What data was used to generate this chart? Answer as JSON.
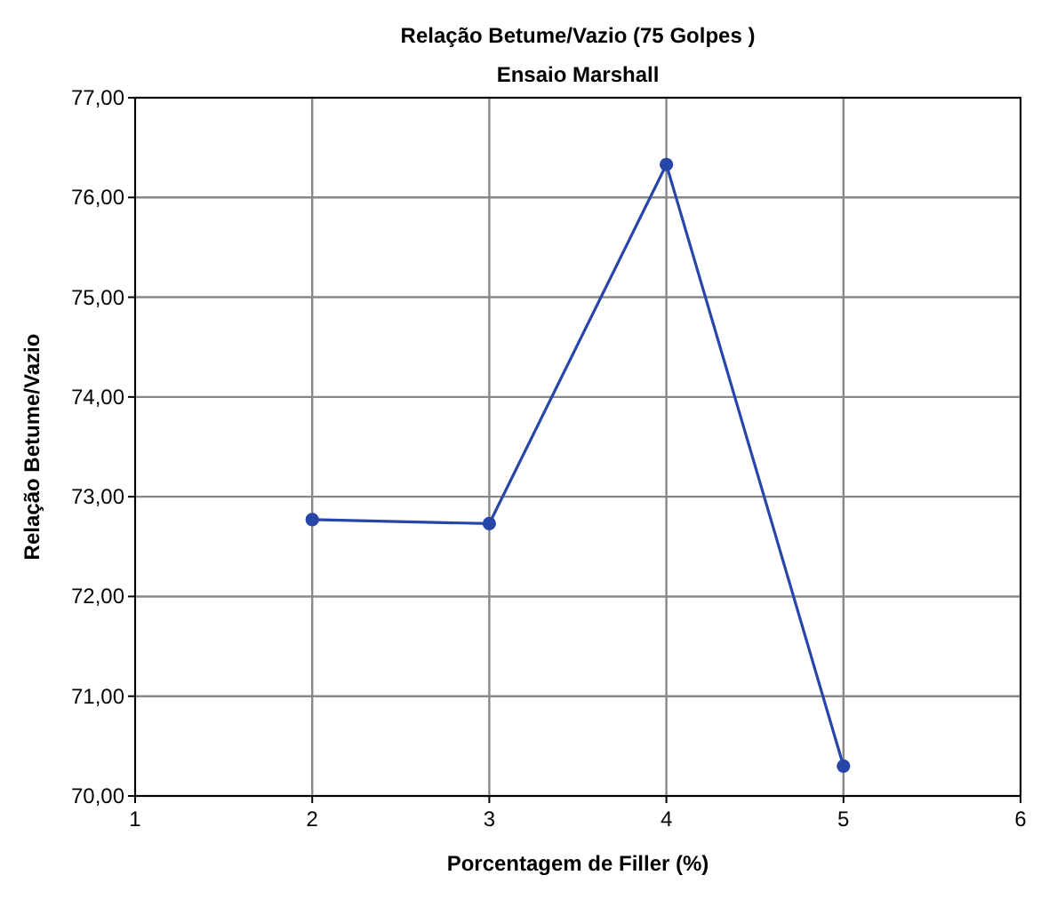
{
  "chart_data": {
    "type": "line",
    "title": "Relação Betume/Vazio (75 Golpes )",
    "subtitle": "Ensaio Marshall",
    "xlabel": "Porcentagem de Filler (%)",
    "ylabel": "Relação Betume/Vazio",
    "x": [
      2,
      3,
      4,
      5
    ],
    "series": [
      {
        "color": "#2846a8",
        "values": [
          72.77,
          72.73,
          76.33,
          70.3
        ]
      }
    ],
    "xlim": [
      1,
      6
    ],
    "xticks": [
      1,
      2,
      3,
      4,
      5,
      6
    ],
    "ylim": [
      70,
      77
    ],
    "yticks": [
      {
        "value": 70,
        "label": "70,00"
      },
      {
        "value": 71,
        "label": "71,00"
      },
      {
        "value": 72,
        "label": "72,00"
      },
      {
        "value": 73,
        "label": "73,00"
      },
      {
        "value": 74,
        "label": "74,00"
      },
      {
        "value": 75,
        "label": "75,00"
      },
      {
        "value": 76,
        "label": "76,00"
      },
      {
        "value": 77,
        "label": "77,00"
      }
    ],
    "grid": true,
    "marker": "circle",
    "line_style": "solid"
  }
}
